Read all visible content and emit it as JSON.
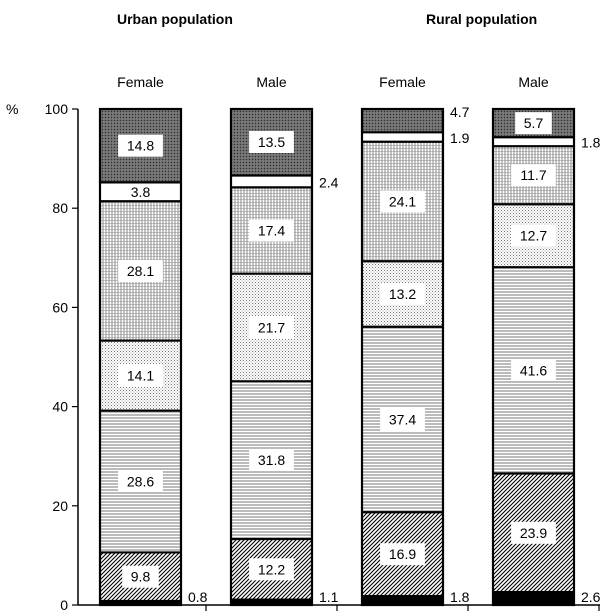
{
  "chart_data": {
    "type": "bar",
    "stacked": true,
    "groups": [
      {
        "title": "Urban population",
        "categories": [
          "Female",
          "Male"
        ]
      },
      {
        "title": "Rural population",
        "categories": [
          "Female",
          "Male"
        ]
      }
    ],
    "y_unit_label": "%",
    "yticks": [
      "0",
      "20",
      "40",
      "60",
      "80",
      "100"
    ],
    "ylim": [
      0,
      100
    ],
    "bars": [
      {
        "category": "Female",
        "group": "Urban population",
        "segments": [
          0.8,
          9.8,
          28.6,
          14.1,
          28.1,
          3.8,
          14.8
        ]
      },
      {
        "category": "Male",
        "group": "Urban population",
        "segments": [
          1.1,
          12.2,
          31.8,
          21.7,
          17.4,
          2.4,
          13.5
        ]
      },
      {
        "category": "Female",
        "group": "Rural population",
        "segments": [
          1.8,
          16.9,
          37.4,
          13.2,
          24.1,
          1.9,
          4.7
        ]
      },
      {
        "category": "Male",
        "group": "Rural population",
        "segments": [
          2.6,
          23.9,
          41.6,
          12.7,
          11.7,
          1.8,
          5.7
        ]
      }
    ],
    "segment_labels": [
      [
        "0.8",
        "9.8",
        "28.6",
        "14.1",
        "28.1",
        "3.8",
        "14.8"
      ],
      [
        "1.1",
        "12.2",
        "31.8",
        "21.7",
        "17.4",
        "2.4",
        "13.5"
      ],
      [
        "1.8",
        "16.9",
        "37.4",
        "13.2",
        "24.1",
        "1.9",
        "4.7"
      ],
      [
        "2.6",
        "23.9",
        "41.6",
        "12.7",
        "11.7",
        "1.8",
        "5.7"
      ]
    ],
    "grid": false,
    "legend": "none"
  }
}
